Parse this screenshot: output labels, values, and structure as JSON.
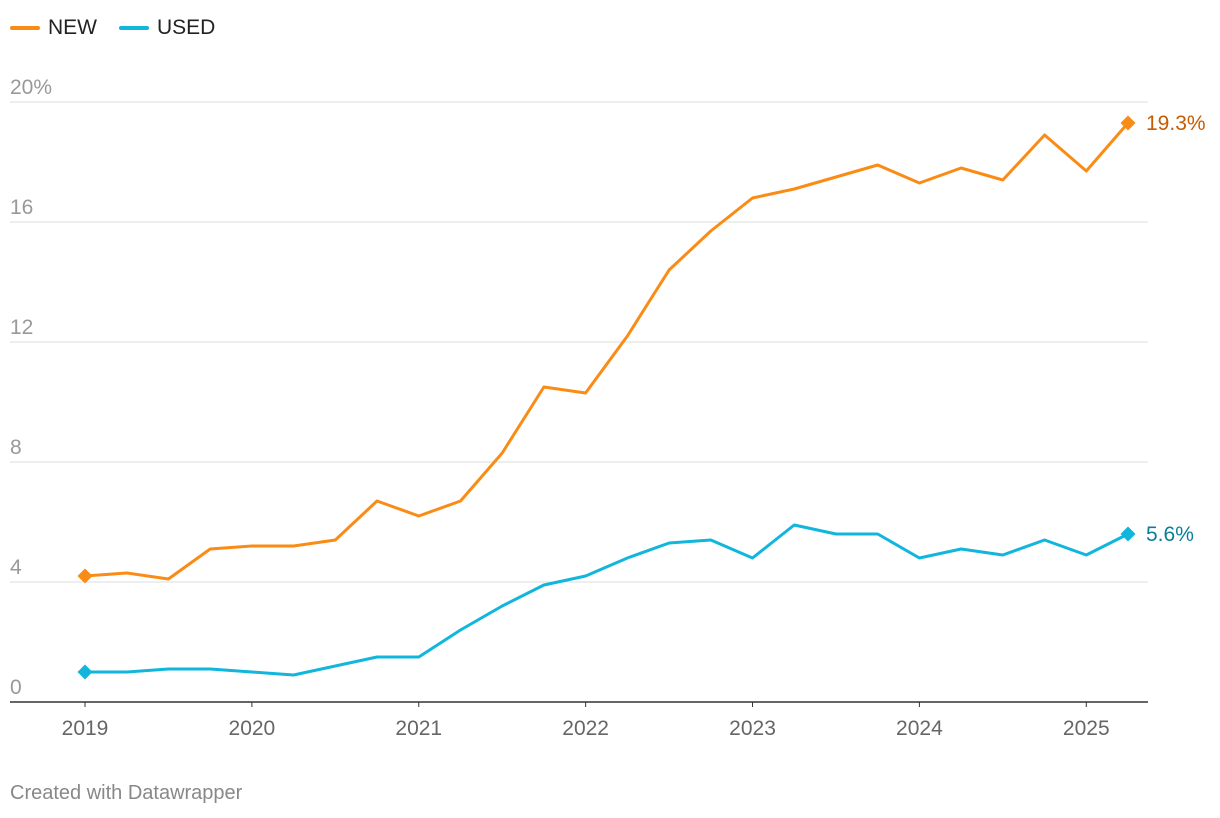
{
  "chart_data": {
    "type": "line",
    "title": "",
    "xlabel": "",
    "ylabel": "",
    "ylim": [
      0,
      20
    ],
    "xlim": [
      2019,
      2025.25
    ],
    "grid": true,
    "legend_position": "top-left",
    "y_ticks": [
      {
        "value": 0,
        "label": "0"
      },
      {
        "value": 4,
        "label": "4"
      },
      {
        "value": 8,
        "label": "8"
      },
      {
        "value": 12,
        "label": "12"
      },
      {
        "value": 16,
        "label": "16"
      },
      {
        "value": 20,
        "label": "20%"
      }
    ],
    "x_ticks": [
      {
        "value": 2019,
        "label": "2019"
      },
      {
        "value": 2020,
        "label": "2020"
      },
      {
        "value": 2021,
        "label": "2021"
      },
      {
        "value": 2022,
        "label": "2022"
      },
      {
        "value": 2023,
        "label": "2023"
      },
      {
        "value": 2024,
        "label": "2024"
      },
      {
        "value": 2025,
        "label": "2025"
      }
    ],
    "x": [
      2019.0,
      2019.25,
      2019.5,
      2019.75,
      2020.0,
      2020.25,
      2020.5,
      2020.75,
      2021.0,
      2021.25,
      2021.5,
      2021.75,
      2022.0,
      2022.25,
      2022.5,
      2022.75,
      2023.0,
      2023.25,
      2023.5,
      2023.75,
      2024.0,
      2024.25,
      2024.5,
      2024.75,
      2025.0,
      2025.25
    ],
    "series": [
      {
        "name": "NEW",
        "color": "#fa8c16",
        "label_color": "#c75b00",
        "end_label": "19.3%",
        "values": [
          4.2,
          4.3,
          4.1,
          5.1,
          5.2,
          5.2,
          5.4,
          6.7,
          6.2,
          6.7,
          8.3,
          10.5,
          10.3,
          12.2,
          14.4,
          15.7,
          16.8,
          17.1,
          17.5,
          17.9,
          17.3,
          17.8,
          17.4,
          18.9,
          17.7,
          19.3
        ]
      },
      {
        "name": "USED",
        "color": "#10b6dc",
        "label_color": "#0a7e99",
        "end_label": "5.6%",
        "values": [
          1.0,
          1.0,
          1.1,
          1.1,
          1.0,
          0.9,
          1.2,
          1.5,
          1.5,
          2.4,
          3.2,
          3.9,
          4.2,
          4.8,
          5.3,
          5.4,
          4.8,
          5.9,
          5.6,
          5.6,
          4.8,
          5.1,
          4.9,
          5.4,
          4.9,
          5.6
        ]
      }
    ]
  },
  "footer": {
    "credit": "Created with Datawrapper"
  }
}
